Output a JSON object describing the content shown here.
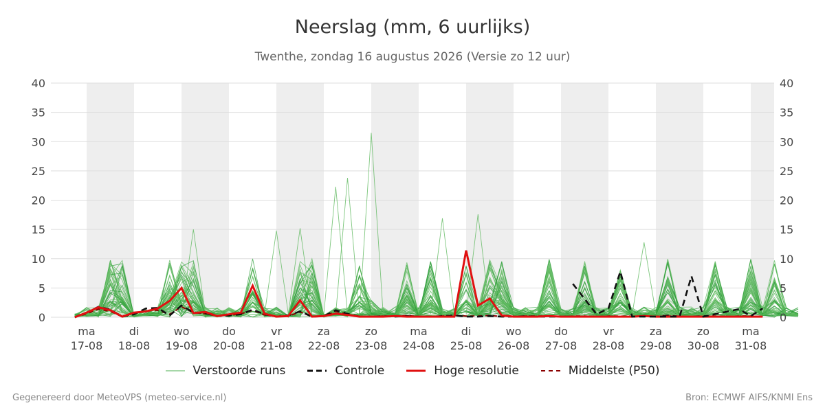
{
  "header": {
    "title": "Neerslag (mm, 6 uurlijks)",
    "subtitle": "Twenthe, zondag 16 augustus 2026 (Versie zo 12 uur)"
  },
  "footer": {
    "left": "Gegenereerd door MeteoVPS (meteo-service.nl)",
    "right": "Bron: ECMWF AIFS/KNMI Ens"
  },
  "legend": {
    "items": [
      {
        "label": "Verstoorde runs",
        "color": "#4caf50",
        "style": "thin-solid"
      },
      {
        "label": "Controle",
        "color": "#111111",
        "style": "dashed"
      },
      {
        "label": "Hoge resolutie",
        "color": "#e01010",
        "style": "thick-solid"
      },
      {
        "label": "Middelste (P50)",
        "color": "#8b0000",
        "style": "dashed"
      }
    ]
  },
  "chart_data": {
    "type": "line",
    "title": "Neerslag (mm, 6 uurlijks)",
    "subtitle": "Twenthe, zondag 16 augustus 2026 (Versie zo 12 uur)",
    "ylim": [
      0,
      40
    ],
    "yticks": [
      0,
      5,
      10,
      15,
      20,
      25,
      30,
      35,
      40
    ],
    "y_axis_both_sides": true,
    "x_range_days": [
      "2026-08-16 12:00",
      "2026-08-31 12:00"
    ],
    "step_hours": 6,
    "x_tick_labels": [
      {
        "day": "ma",
        "date": "17-08"
      },
      {
        "day": "di",
        "date": "18-08"
      },
      {
        "day": "wo",
        "date": "19-08"
      },
      {
        "day": "do",
        "date": "20-08"
      },
      {
        "day": "vr",
        "date": "21-08"
      },
      {
        "day": "za",
        "date": "22-08"
      },
      {
        "day": "zo",
        "date": "23-08"
      },
      {
        "day": "ma",
        "date": "24-08"
      },
      {
        "day": "di",
        "date": "25-08"
      },
      {
        "day": "wo",
        "date": "26-08"
      },
      {
        "day": "do",
        "date": "27-08"
      },
      {
        "day": "vr",
        "date": "28-08"
      },
      {
        "day": "za",
        "date": "29-08"
      },
      {
        "day": "zo",
        "date": "30-08"
      },
      {
        "day": "ma",
        "date": "31-08"
      }
    ],
    "shaded_days": [
      "17-08",
      "19-08",
      "21-08",
      "23-08",
      "25-08",
      "27-08",
      "29-08",
      "31-08"
    ],
    "grid": true,
    "legend_position": "bottom",
    "series": [
      {
        "name": "Controle",
        "color": "#111111",
        "style": "dashed",
        "values": [
          0,
          0.8,
          1.8,
          1.3,
          0.1,
          0.5,
          1.5,
          1.6,
          0.3,
          2.0,
          0.8,
          0.7,
          0.2,
          0.3,
          0.5,
          1.3,
          0.5,
          0.1,
          0.3,
          1.0,
          0.1,
          0.2,
          1.2,
          0.6,
          0.1,
          0.1,
          0.2,
          0.1,
          0.2,
          0.1,
          0.1,
          0.2,
          0.3,
          0.1,
          0.1,
          0.2,
          0.1,
          0.1,
          0.2,
          0.1,
          0.1,
          0.1,
          0.1,
          0.1,
          0.1,
          0.1,
          0.1,
          0.1,
          0.2,
          0.1,
          0.3,
          0.1,
          0.1,
          0.2,
          0.1,
          0.1,
          0.1,
          0.1,
          0.1,
          0.1,
          0.1,
          0.1,
          0.1,
          0.1,
          0.1,
          0.1,
          0.1,
          0.3,
          0.1,
          0.1,
          0.1,
          0.1,
          0.1,
          0.2,
          0.1,
          0.1,
          0.1,
          0.1,
          0.1,
          0.2,
          0.1,
          0.1,
          0.1,
          0.1,
          0.1,
          0.1,
          0.1,
          0.1,
          0.1,
          0.1,
          0.1,
          0.1,
          0.1,
          0.1,
          0.1,
          0.1,
          0.1,
          0.1,
          0.1,
          0.1,
          0.1,
          0.1,
          0.1,
          0.1,
          0.1,
          0.1,
          0.1,
          0.1,
          0.1,
          0.1,
          0.1,
          0.1,
          0.1,
          0.1,
          0.1,
          0.1,
          0.1,
          0.1,
          0.1,
          0.1,
          0.1
        ]
      },
      {
        "name": "Hoge resolutie",
        "color": "#e01010",
        "style": "thick-solid",
        "values": [
          0,
          0.8,
          1.7,
          1.2,
          0.1,
          0.8,
          1.0,
          1.5,
          2.8,
          5.0,
          0.7,
          0.9,
          0.2,
          0.5,
          0.8,
          5.4,
          0.6,
          0.1,
          0.2,
          2.9,
          0.1,
          0.2,
          0.6,
          0.4,
          0.1,
          0.1,
          0.1,
          0.2,
          0.1,
          0.1,
          0.1,
          0.1,
          0.1,
          11.4,
          2.0,
          3.2,
          0.3,
          0.1,
          0.1,
          0.1,
          0.2,
          0.1,
          0.1,
          0.1,
          0.1,
          0.1,
          0.1,
          0.1,
          0.2,
          0.1,
          0.1,
          0.1,
          0.1,
          0.1,
          0.1,
          0.1,
          0.1,
          0.1,
          0.1,
          0.1,
          0.1
        ]
      },
      {
        "name": "Middelste (P50)",
        "color": "#8b0000",
        "style": "dashed",
        "values": [
          0,
          0.6,
          1.4,
          1.0,
          0.1,
          0.6,
          1.1,
          1.2,
          0.5,
          1.8,
          0.8,
          0.6,
          0.2,
          0.3,
          0.6,
          1.2,
          0.4,
          0.1,
          0.2,
          0.9,
          0.1,
          0.2,
          1.0,
          0.5,
          0.1,
          0.1,
          0.2,
          0.1,
          0.3,
          0.1,
          0.1,
          0.2,
          0.3,
          0.2,
          0.2,
          0.3,
          0.1,
          0.1,
          0.2,
          0.2,
          0.2,
          0.1,
          0.2,
          0.2,
          0.1,
          0.2,
          0.2,
          0.1,
          0.2,
          0.1,
          0.2,
          0.2,
          0.1,
          0.2,
          0.2,
          0.1,
          0.2,
          0.2,
          0.1,
          0.2,
          0.2
        ]
      }
    ]
  }
}
